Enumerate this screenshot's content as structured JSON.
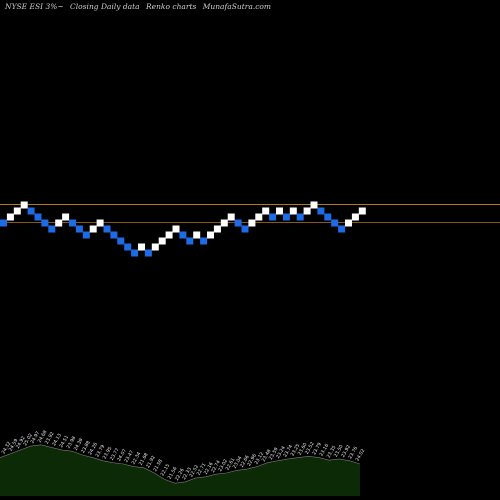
{
  "header": {
    "ticker": "NYSE ESI 3%~",
    "chart_kind": "Closing Daily data",
    "chart_style": "Renko charts",
    "site": "MunafaSutra.com"
  },
  "colors": {
    "background": "#000000",
    "up_brick": "#ffffff",
    "down_brick": "#1e6be6",
    "line_upper": "#b07a1e",
    "line_lower": "#8a5a12",
    "volume_fill": "#0c2a06",
    "volume_stroke": "#7a7a7a"
  },
  "chart_data": {
    "type": "renko",
    "bricks": [
      {
        "level": 23.25,
        "dir": "down"
      },
      {
        "level": 23.5,
        "dir": "up"
      },
      {
        "level": 23.75,
        "dir": "up"
      },
      {
        "level": 24.0,
        "dir": "up"
      },
      {
        "level": 23.75,
        "dir": "down"
      },
      {
        "level": 23.5,
        "dir": "down"
      },
      {
        "level": 23.25,
        "dir": "down"
      },
      {
        "level": 23.0,
        "dir": "down"
      },
      {
        "level": 23.25,
        "dir": "up"
      },
      {
        "level": 23.5,
        "dir": "up"
      },
      {
        "level": 23.25,
        "dir": "down"
      },
      {
        "level": 23.0,
        "dir": "down"
      },
      {
        "level": 22.75,
        "dir": "down"
      },
      {
        "level": 23.0,
        "dir": "up"
      },
      {
        "level": 23.25,
        "dir": "up"
      },
      {
        "level": 23.0,
        "dir": "down"
      },
      {
        "level": 22.75,
        "dir": "down"
      },
      {
        "level": 22.5,
        "dir": "down"
      },
      {
        "level": 22.25,
        "dir": "down"
      },
      {
        "level": 22.0,
        "dir": "down"
      },
      {
        "level": 22.25,
        "dir": "up"
      },
      {
        "level": 22.0,
        "dir": "down"
      },
      {
        "level": 22.25,
        "dir": "up"
      },
      {
        "level": 22.5,
        "dir": "up"
      },
      {
        "level": 22.75,
        "dir": "up"
      },
      {
        "level": 23.0,
        "dir": "up"
      },
      {
        "level": 22.75,
        "dir": "down"
      },
      {
        "level": 22.5,
        "dir": "down"
      },
      {
        "level": 22.75,
        "dir": "up"
      },
      {
        "level": 22.5,
        "dir": "down"
      },
      {
        "level": 22.75,
        "dir": "up"
      },
      {
        "level": 23.0,
        "dir": "up"
      },
      {
        "level": 23.25,
        "dir": "up"
      },
      {
        "level": 23.5,
        "dir": "up"
      },
      {
        "level": 23.25,
        "dir": "down"
      },
      {
        "level": 23.0,
        "dir": "down"
      },
      {
        "level": 23.25,
        "dir": "up"
      },
      {
        "level": 23.5,
        "dir": "up"
      },
      {
        "level": 23.75,
        "dir": "up"
      },
      {
        "level": 23.5,
        "dir": "down"
      },
      {
        "level": 23.75,
        "dir": "up"
      },
      {
        "level": 23.5,
        "dir": "down"
      },
      {
        "level": 23.75,
        "dir": "up"
      },
      {
        "level": 23.5,
        "dir": "down"
      },
      {
        "level": 23.75,
        "dir": "up"
      },
      {
        "level": 24.0,
        "dir": "up"
      },
      {
        "level": 23.75,
        "dir": "down"
      },
      {
        "level": 23.5,
        "dir": "down"
      },
      {
        "level": 23.25,
        "dir": "down"
      },
      {
        "level": 23.0,
        "dir": "down"
      },
      {
        "level": 23.25,
        "dir": "up"
      },
      {
        "level": 23.5,
        "dir": "up"
      },
      {
        "level": 23.75,
        "dir": "up"
      }
    ],
    "horizontal_lines": [
      24.05,
      23.3
    ],
    "volume_profile": [
      0.6,
      0.66,
      0.72,
      0.78,
      0.8,
      0.76,
      0.72,
      0.7,
      0.64,
      0.6,
      0.55,
      0.52,
      0.5,
      0.46,
      0.44,
      0.36,
      0.26,
      0.2,
      0.22,
      0.28,
      0.3,
      0.34,
      0.36,
      0.4,
      0.42,
      0.46,
      0.52,
      0.55,
      0.58,
      0.6,
      0.62,
      0.6,
      0.56,
      0.58,
      0.55,
      0.5
    ],
    "price_labels": [
      "24.32",
      "24.59",
      "24.92",
      "25.02",
      "24.97",
      "24.68",
      "23.92",
      "24.13",
      "24.51",
      "23.98",
      "24.39",
      "23.88",
      "24.26",
      "23.79",
      "23.95",
      "23.77",
      "24.07",
      "23.47",
      "22.34",
      "21.68",
      "21.92",
      "21.58",
      "22.15",
      "21.56",
      "22.26",
      "22.33",
      "22.52",
      "22.71",
      "22.16",
      "22.74",
      "23.02",
      "22.61",
      "23.04",
      "22.66",
      "22.96",
      "23.12",
      "23.48",
      "23.59",
      "23.24",
      "23.74",
      "23.25",
      "23.60",
      "23.52",
      "23.79",
      "23.16",
      "23.35",
      "23.50",
      "23.92",
      "23.76",
      "24.02"
    ]
  }
}
